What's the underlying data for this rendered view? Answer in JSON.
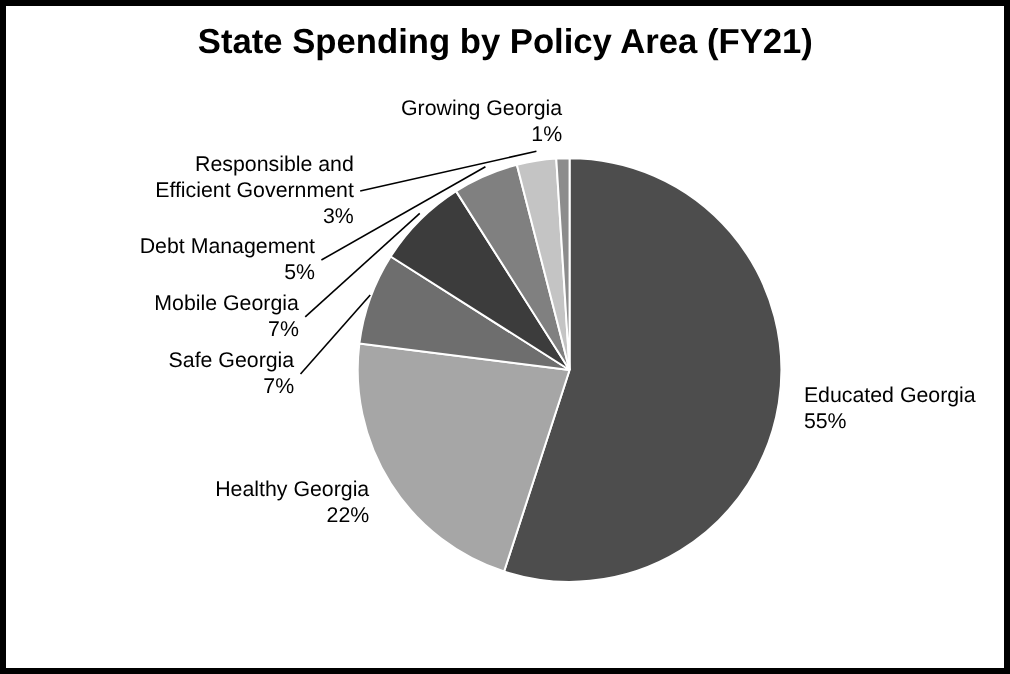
{
  "chart_data": {
    "type": "pie",
    "title": "State Spending by Policy Area (FY21)",
    "categories": [
      "Educated Georgia",
      "Healthy Georgia",
      "Safe Georgia",
      "Mobile Georgia",
      "Debt Management",
      "Responsible and Efficient Government",
      "Growing Georgia"
    ],
    "values": [
      55,
      22,
      7,
      7,
      5,
      3,
      1
    ],
    "value_labels": [
      "55%",
      "22%",
      "7%",
      "7%",
      "5%",
      "3%",
      "1%"
    ],
    "colors": [
      "#4d4d4d",
      "#a6a6a6",
      "#6e6e6e",
      "#3c3c3c",
      "#808080",
      "#c4c4c4",
      "#8c8c8c"
    ]
  }
}
